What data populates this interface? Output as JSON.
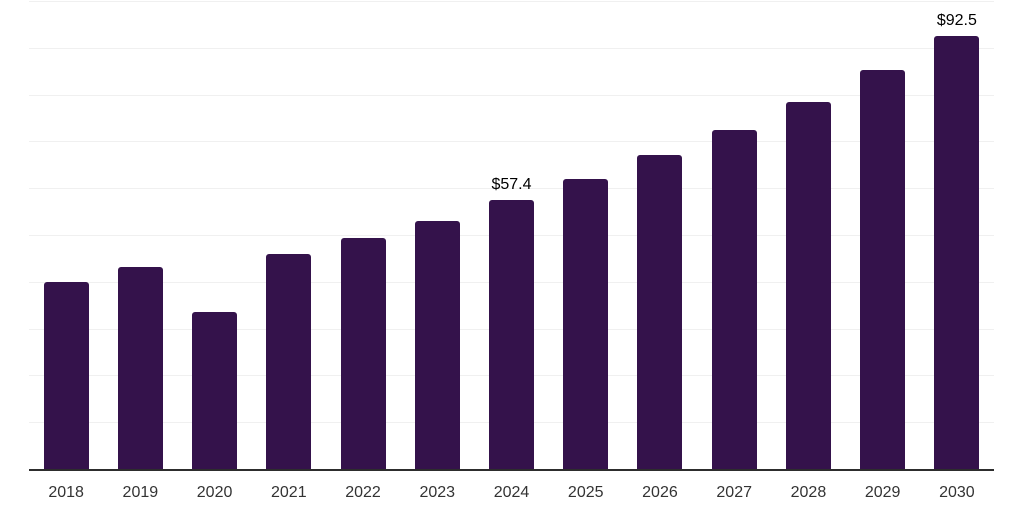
{
  "chart_data": {
    "type": "bar",
    "title": "",
    "xlabel": "",
    "ylabel": "",
    "categories": [
      "2018",
      "2019",
      "2020",
      "2021",
      "2022",
      "2023",
      "2024",
      "2025",
      "2026",
      "2027",
      "2028",
      "2029",
      "2030"
    ],
    "values": [
      40.0,
      43.2,
      33.6,
      46.0,
      49.3,
      53.0,
      57.4,
      62.0,
      67.1,
      72.5,
      78.4,
      85.3,
      92.5
    ],
    "data_labels": {
      "2024": "$57.4",
      "2030": "$92.5"
    },
    "ylim": [
      0,
      100
    ],
    "gridline_step": 10,
    "grid": "horizontal",
    "y_axis_tick_labels_visible": false,
    "legend_position": "none"
  },
  "style": {
    "background_color": "#ffffff",
    "bar_color": "#34124b",
    "gridline_color": "#f0f0f0",
    "axis_line_color": "#2d2d2d",
    "tick_label_color": "#333333",
    "value_label_color": "#000000"
  }
}
